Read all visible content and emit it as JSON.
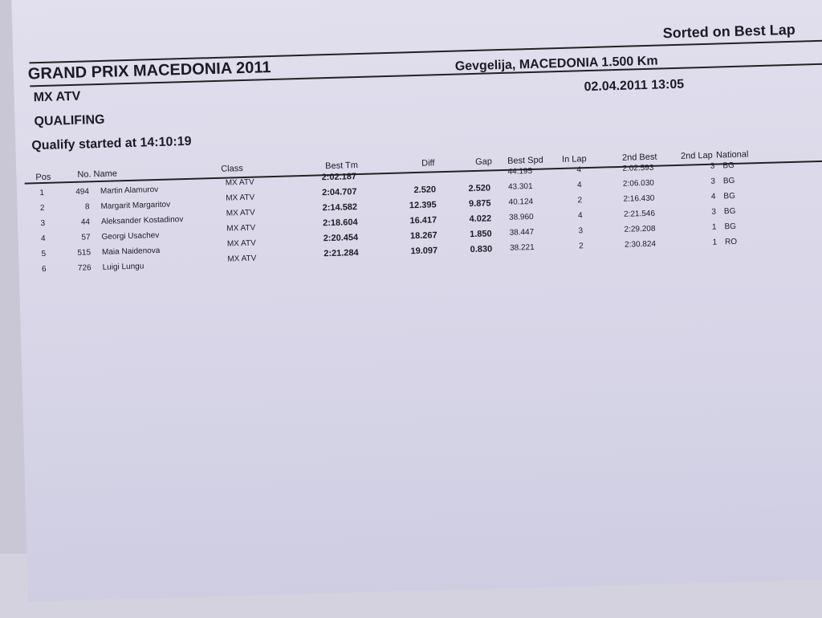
{
  "sorted_label": "Sorted on Best Lap",
  "event_title": "GRAND PRIX MACEDONIA 2011",
  "venue": "Gevgelija, MACEDONIA 1.500 Km",
  "class_title": "MX ATV",
  "date_time": "02.04.2011 13:05",
  "session": "QUALIFING",
  "start_info": "Qualify started at 14:10:19",
  "columns": {
    "pos": "Pos",
    "no": "No. Name",
    "class": "Class",
    "best_tm": "Best Tm",
    "diff": "Diff",
    "gap": "Gap",
    "best_spd": "Best Spd",
    "in_lap": "In Lap",
    "second_best": "2nd Best",
    "second_lap": "2nd Lap",
    "national": "National"
  },
  "rows": [
    {
      "pos": "1",
      "no": "494",
      "name": "Martin Alamurov",
      "class": "MX ATV",
      "best_tm": "2:02.187",
      "diff": "",
      "gap": "",
      "best_spd": "44.195",
      "in_lap": "4",
      "second_best": "2:02.593",
      "second_lap": "3",
      "national": "BG"
    },
    {
      "pos": "2",
      "no": "8",
      "name": "Margarit Margaritov",
      "class": "MX ATV",
      "best_tm": "2:04.707",
      "diff": "2.520",
      "gap": "2.520",
      "best_spd": "43.301",
      "in_lap": "4",
      "second_best": "2:06.030",
      "second_lap": "3",
      "national": "BG"
    },
    {
      "pos": "3",
      "no": "44",
      "name": "Aleksander Kostadinov",
      "class": "MX ATV",
      "best_tm": "2:14.582",
      "diff": "12.395",
      "gap": "9.875",
      "best_spd": "40.124",
      "in_lap": "2",
      "second_best": "2:16.430",
      "second_lap": "4",
      "national": "BG"
    },
    {
      "pos": "4",
      "no": "57",
      "name": "Georgi Usachev",
      "class": "MX ATV",
      "best_tm": "2:18.604",
      "diff": "16.417",
      "gap": "4.022",
      "best_spd": "38.960",
      "in_lap": "4",
      "second_best": "2:21.546",
      "second_lap": "3",
      "national": "BG"
    },
    {
      "pos": "5",
      "no": "515",
      "name": "Maia Naidenova",
      "class": "MX ATV",
      "best_tm": "2:20.454",
      "diff": "18.267",
      "gap": "1.850",
      "best_spd": "38.447",
      "in_lap": "3",
      "second_best": "2:29.208",
      "second_lap": "1",
      "national": "BG"
    },
    {
      "pos": "6",
      "no": "726",
      "name": "Luigi Lungu",
      "class": "MX ATV",
      "best_tm": "2:21.284",
      "diff": "19.097",
      "gap": "0.830",
      "best_spd": "38.221",
      "in_lap": "2",
      "second_best": "2:30.824",
      "second_lap": "1",
      "national": "RO"
    }
  ]
}
